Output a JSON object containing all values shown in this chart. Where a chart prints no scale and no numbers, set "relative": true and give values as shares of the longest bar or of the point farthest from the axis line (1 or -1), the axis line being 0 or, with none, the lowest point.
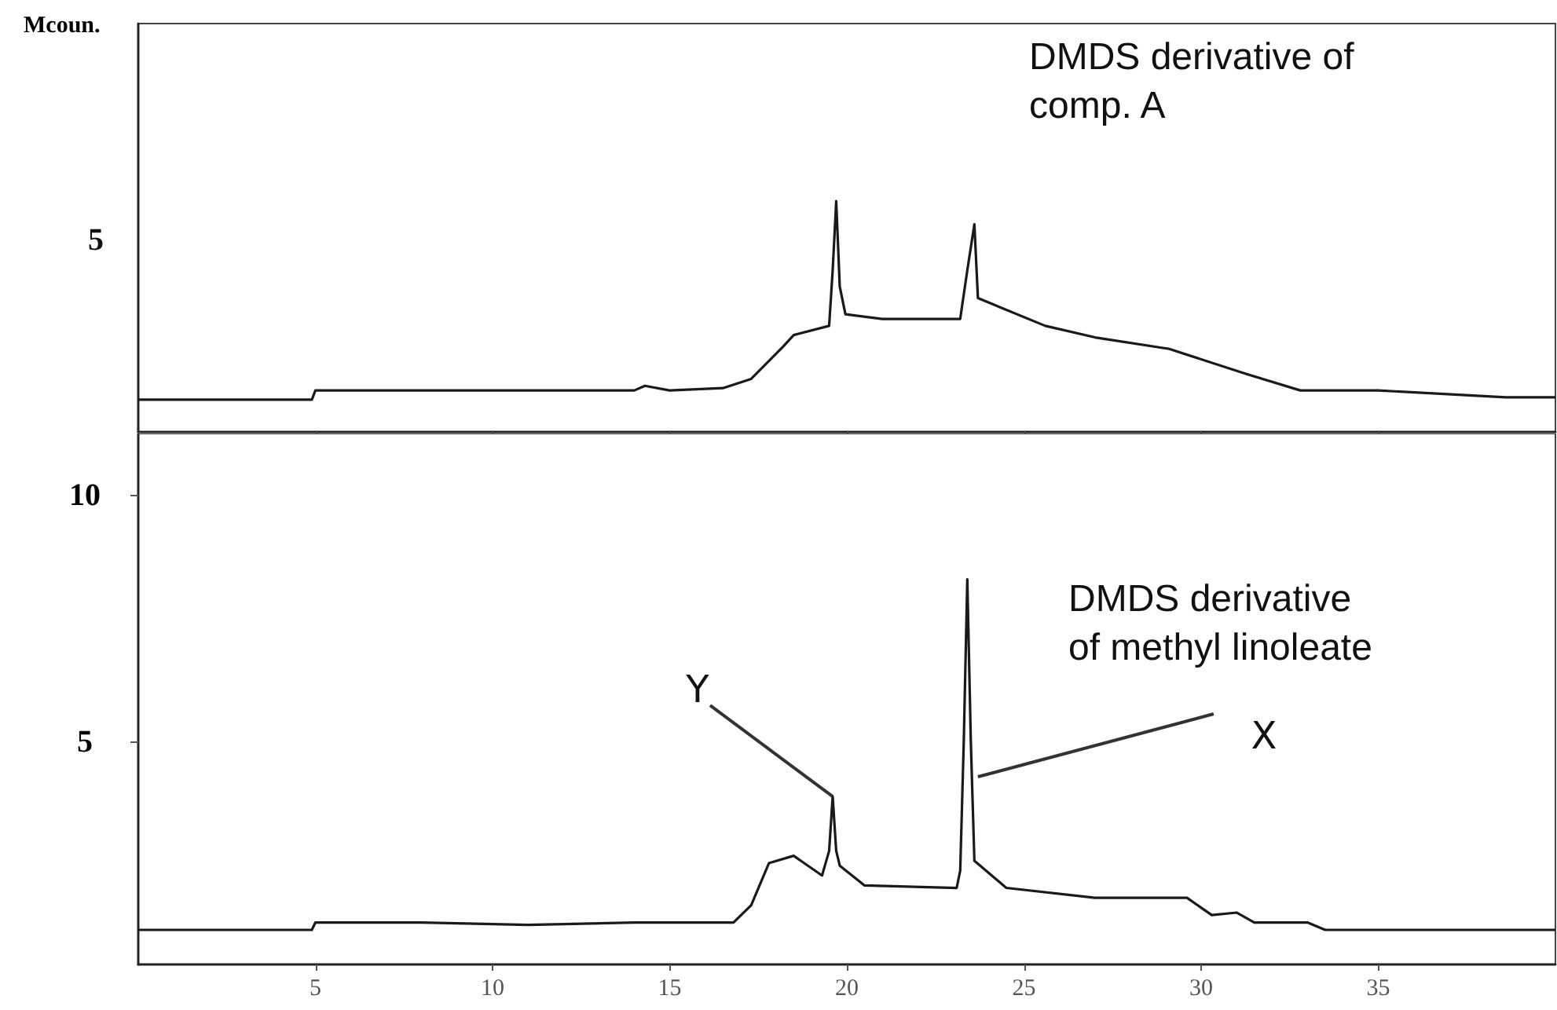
{
  "chart_data": [
    {
      "type": "line",
      "ylabel": "Mcoun.",
      "annotations": [
        "DMDS derivative of comp. A",
        "5"
      ],
      "relative": true,
      "xlim": [
        0,
        40
      ],
      "xticks": [
        5,
        10,
        15,
        20,
        25,
        30,
        35
      ],
      "tick_labels": false,
      "marker": "none",
      "line_style": "solid",
      "series": [
        {
          "color": "#1a1a1a",
          "x": [
            0,
            4.9,
            5,
            8,
            11,
            14,
            14.3,
            15,
            16.5,
            17.3,
            18.2,
            18.5,
            19.5,
            19.6,
            19.7,
            19.8,
            19.96,
            21,
            23.2,
            23.4,
            23.6,
            23.7,
            25.6,
            27,
            29.1,
            31.3,
            32.8,
            35,
            38.6,
            40
          ],
          "values": [
            0.14,
            0.14,
            0.18,
            0.18,
            0.18,
            0.18,
            0.2,
            0.18,
            0.19,
            0.23,
            0.37,
            0.42,
            0.46,
            0.7,
            1,
            0.63,
            0.51,
            0.49,
            0.49,
            0.7,
            0.9,
            0.58,
            0.46,
            0.41,
            0.36,
            0.25,
            0.18,
            0.18,
            0.15,
            0.15
          ]
        }
      ]
    },
    {
      "type": "line",
      "annotations": [
        "DMDS derivative of methyl linoleate",
        {
          "text": "Y",
          "x": 19.6,
          "y": 3.9
        },
        {
          "text": "X",
          "x": 23.7,
          "y": 4.3
        }
      ],
      "xlim": [
        0,
        40
      ],
      "xticks": [
        5,
        10,
        15,
        20,
        25,
        30,
        35
      ],
      "ylim": [
        0.5,
        11.25
      ],
      "yticks": [
        5,
        10
      ],
      "marker": "none",
      "line_style": "solid",
      "series": [
        {
          "color": "#1a1a1a",
          "x": [
            0,
            4.9,
            5,
            8,
            11,
            14,
            16.8,
            17.3,
            17.8,
            18.5,
            19.3,
            19.5,
            19.6,
            19.7,
            19.8,
            20.5,
            23.1,
            23.2,
            23.3,
            23.4,
            23.5,
            23.6,
            24.5,
            27,
            29.6,
            30.3,
            31,
            31.5,
            33,
            33.5,
            40
          ],
          "values": [
            1.2,
            1.2,
            1.35,
            1.35,
            1.3,
            1.35,
            1.35,
            1.7,
            2.55,
            2.7,
            2.3,
            2.8,
            3.9,
            2.8,
            2.5,
            2.1,
            2.05,
            2.4,
            5,
            8.3,
            5,
            2.6,
            2.05,
            1.85,
            1.85,
            1.5,
            1.55,
            1.35,
            1.35,
            1.2,
            1.2
          ]
        }
      ]
    }
  ]
}
